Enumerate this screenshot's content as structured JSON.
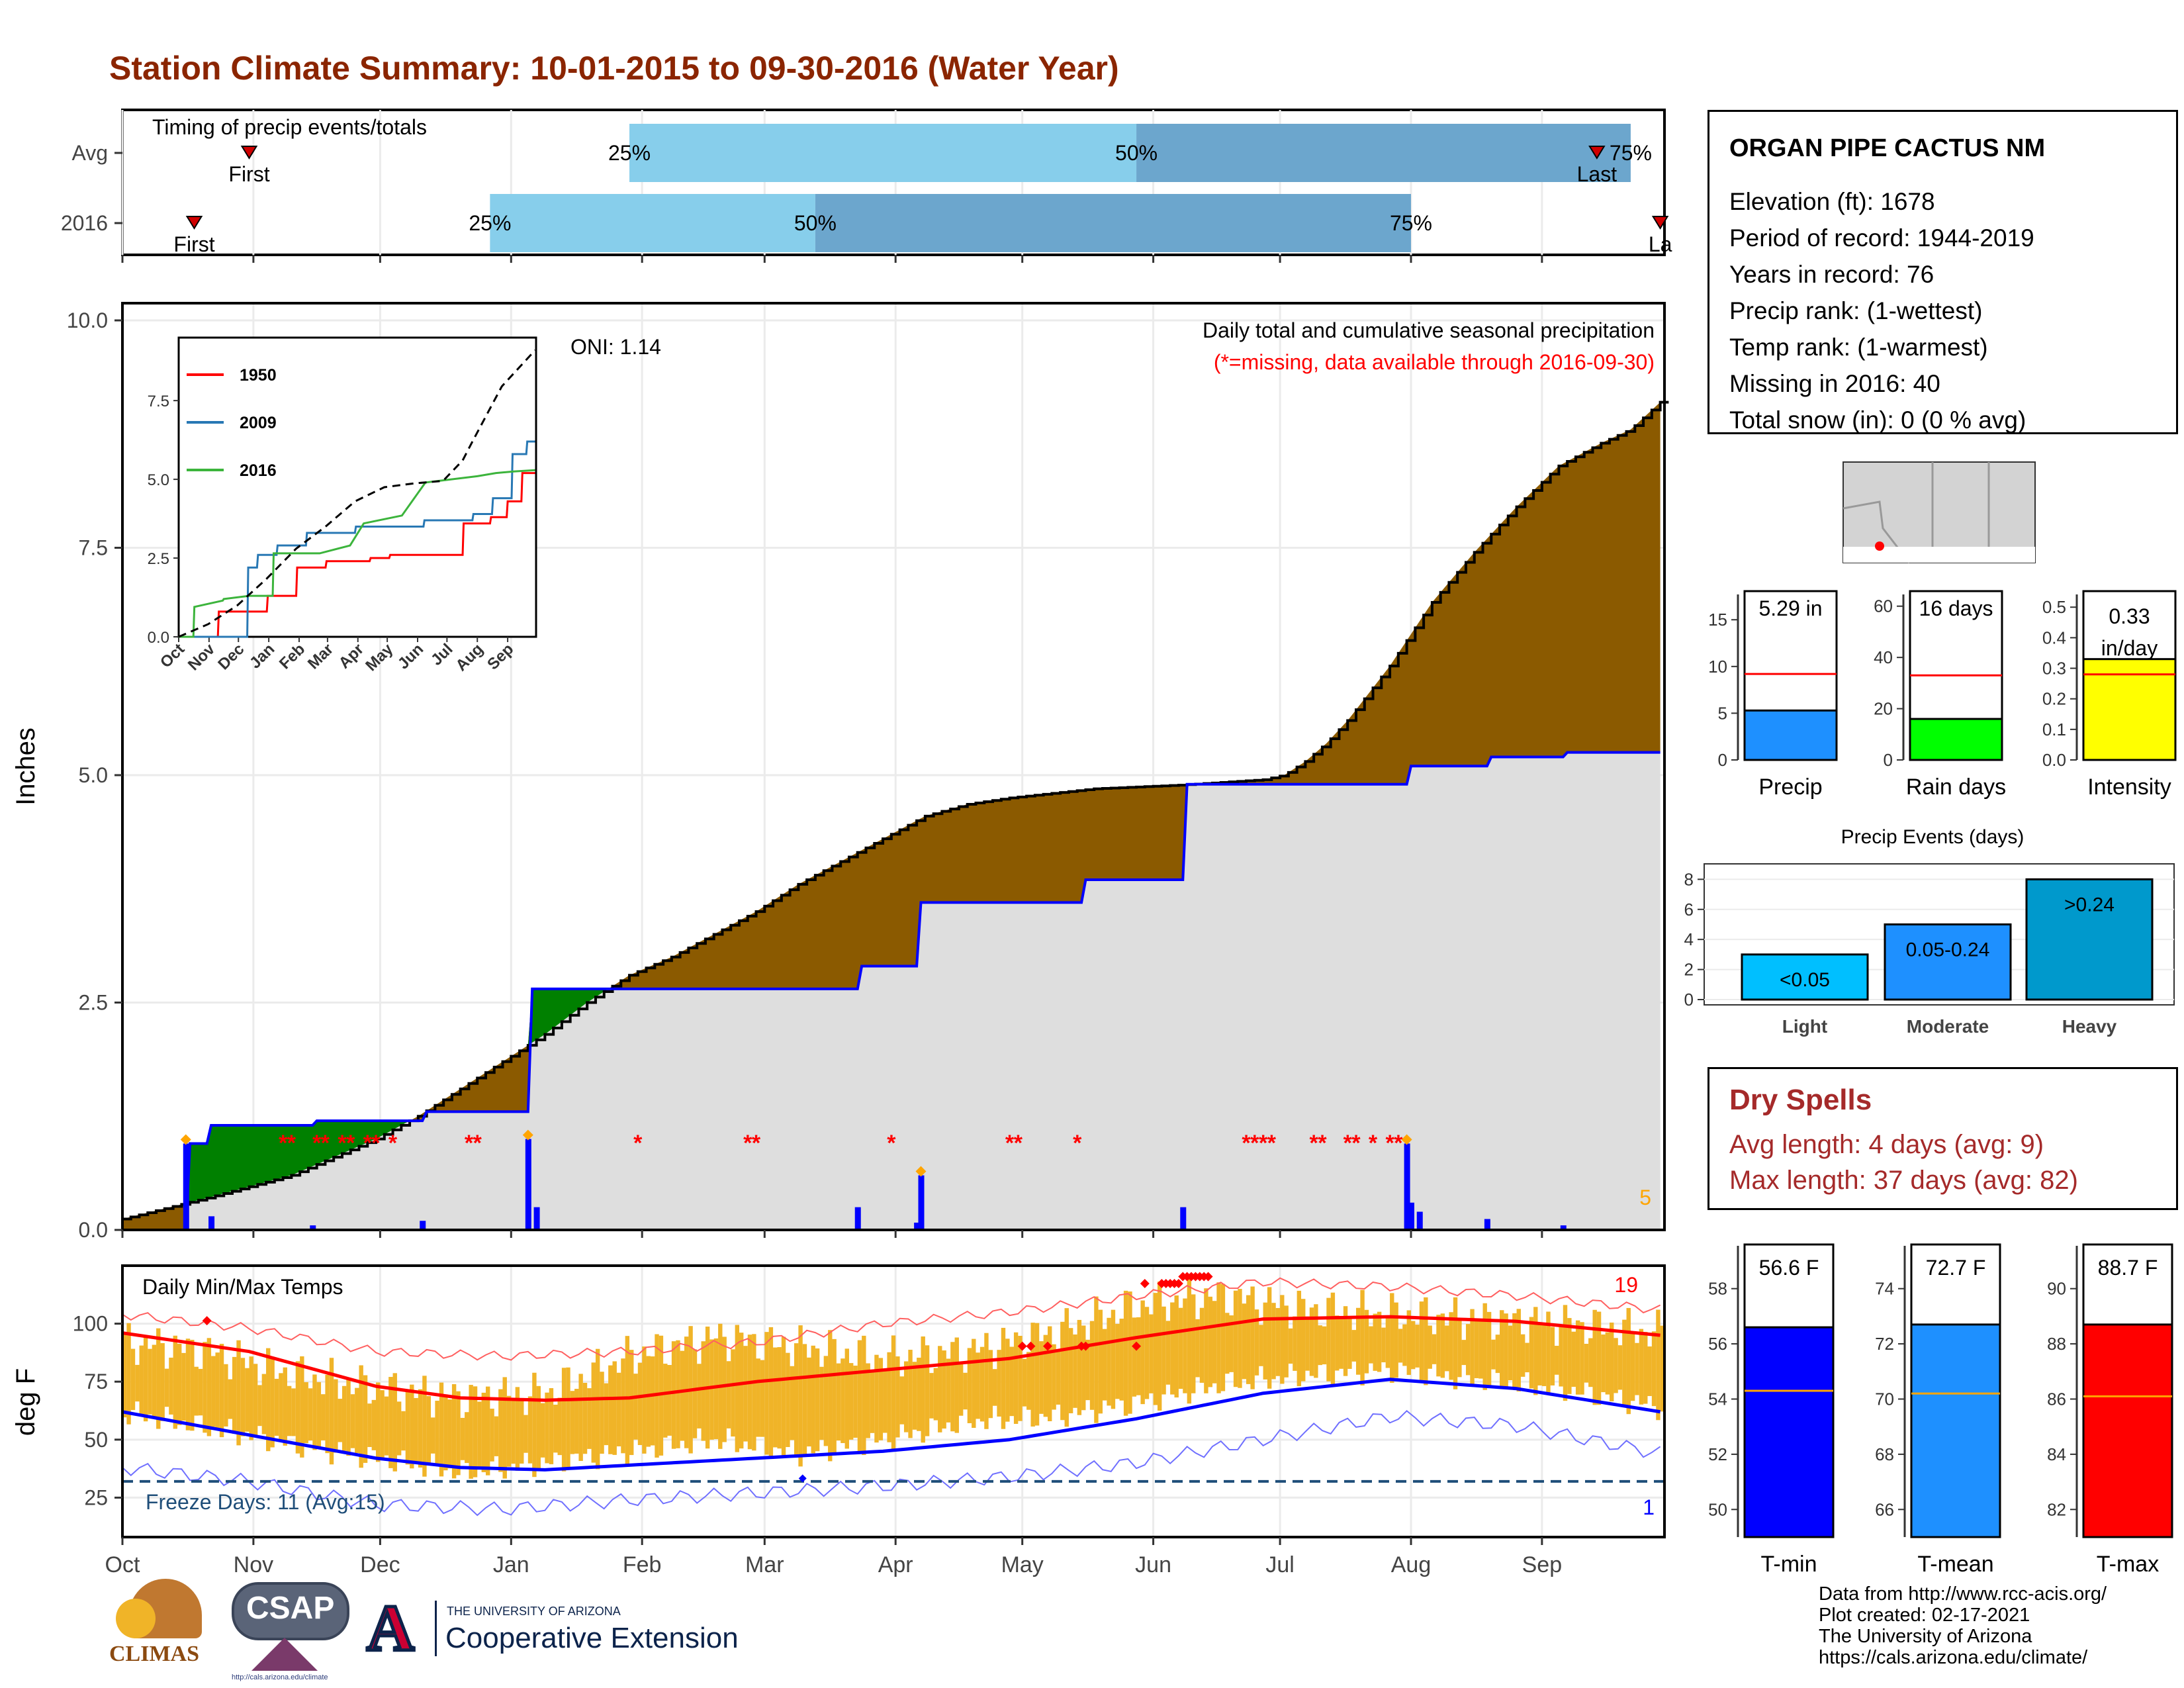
{
  "title": "Station Climate Summary: 10-01-2015 to 09-30-2016 (Water Year)",
  "colors": {
    "title": "#8b2500",
    "brown": "#8b5a00",
    "green": "#008000",
    "grey_fill": "#dedede",
    "light_blue": "#87ceeb",
    "mid_blue": "#6ca6cd",
    "temp_band": "#f0b428",
    "red": "#ff0000",
    "blue": "#0000ff",
    "dry_spell_red": "#a52a2a"
  },
  "timing": {
    "label": "Timing of precip events/totals",
    "rows": [
      {
        "name": "Avg",
        "first_label": "First",
        "last_label": "Last",
        "first_day": 30,
        "last_day": 349,
        "p25_day": 120,
        "p50_day": 240,
        "p75_day": 357,
        "p25_label": "25%",
        "p50_label": "50%",
        "p75_label": "75%"
      },
      {
        "name": "2016",
        "first_label": "First",
        "last_label": "La",
        "first_day": 17,
        "last_day": 364,
        "p25_day": 87,
        "p50_day": 164,
        "p75_day": 305,
        "p25_label": "25%",
        "p50_label": "50%",
        "p75_label": "75%"
      }
    ]
  },
  "month_labels": [
    "Oct",
    "Nov",
    "Dec",
    "Jan",
    "Feb",
    "Mar",
    "Apr",
    "May",
    "Jun",
    "Jul",
    "Aug",
    "Sep"
  ],
  "precip_panel": {
    "ylabel": "Inches",
    "yticks": [
      "0.0",
      "2.5",
      "5.0",
      "7.5",
      "10.0"
    ],
    "subtitle": "Daily total and cumulative seasonal precipitation",
    "missing_note": "(*=missing, data available through 2016-09-30)",
    "oni": "ONI: 1.14",
    "corner_count": "5"
  },
  "inset": {
    "yticks": [
      "0.0",
      "2.5",
      "5.0",
      "7.5"
    ],
    "xticks": [
      "Oct",
      "Nov",
      "Dec",
      "Jan",
      "Feb",
      "Mar",
      "Apr",
      "May",
      "Jun",
      "Jul",
      "Aug",
      "Sep"
    ],
    "legend": [
      {
        "name": "1950",
        "color": "#ff0000"
      },
      {
        "name": "2009",
        "color": "#2878b4"
      },
      {
        "name": "2016",
        "color": "#3cb43c"
      }
    ]
  },
  "temp_panel": {
    "ylabel": "deg F",
    "yticks": [
      "25",
      "50",
      "75",
      "100"
    ],
    "label": "Daily Min/Max Temps",
    "freeze_label": "Freeze Days: 11 (Avg:15)",
    "record_high_count": "19",
    "record_low_count": "1"
  },
  "station": {
    "name": "ORGAN PIPE CACTUS NM",
    "lines": [
      "Elevation (ft): 1678",
      "Period of record: 1944-2019",
      "Years in record: 76",
      "Precip rank:  (1-wettest)",
      "Temp rank:  (1-warmest)",
      "Missing in 2016: 40",
      "Total snow (in): 0 (0 % avg)"
    ]
  },
  "summary_bars": [
    {
      "label": "Precip",
      "value_text": "5.29 in",
      "yticks": [
        "0",
        "5",
        "10",
        "15"
      ],
      "ymax": 17,
      "value": 5.29,
      "avg": 9.2,
      "color": "#1e90ff"
    },
    {
      "label": "Rain days",
      "value_text": "16 days",
      "yticks": [
        "0",
        "20",
        "40",
        "60"
      ],
      "ymax": 62,
      "value": 16,
      "avg": 33,
      "color": "#00ff00"
    },
    {
      "label": "Intensity",
      "value_text": "0.33 in/day",
      "yticks": [
        "0.0",
        "0.1",
        "0.2",
        "0.3",
        "0.4",
        "0.5"
      ],
      "ymax": 0.52,
      "value": 0.33,
      "avg": 0.28,
      "color": "#ffff00"
    }
  ],
  "precip_events": {
    "title": "Precip Events (days)",
    "yticks": [
      "0",
      "2",
      "4",
      "6",
      "8"
    ],
    "bars": [
      {
        "label": "Light",
        "value": 3,
        "text": "<0.05",
        "color": "#00bfff"
      },
      {
        "label": "Moderate",
        "value": 5,
        "text": "0.05-0.24",
        "color": "#1e90ff"
      },
      {
        "label": "Heavy",
        "value": 8,
        "text": ">0.24",
        "color": "#0099cc"
      }
    ]
  },
  "dry_spells": {
    "title": "Dry Spells",
    "avg_line": "Avg length: 4 days (avg: 9)",
    "max_line": "Max length: 37 days (avg: 82)"
  },
  "temp_bars": [
    {
      "label": "T-min",
      "value_text": "56.6 F",
      "yticks": [
        "50",
        "52",
        "54",
        "56",
        "58"
      ],
      "ymin": 49,
      "ymax": 59,
      "value": 56.6,
      "avg": 54.3,
      "color": "#0000ff"
    },
    {
      "label": "T-mean",
      "value_text": "72.7 F",
      "yticks": [
        "66",
        "68",
        "70",
        "72",
        "74"
      ],
      "ymin": 65,
      "ymax": 75,
      "value": 72.7,
      "avg": 70.2,
      "color": "#1e90ff"
    },
    {
      "label": "T-max",
      "value_text": "88.7 F",
      "yticks": [
        "82",
        "84",
        "86",
        "88",
        "90"
      ],
      "ymin": 81,
      "ymax": 91,
      "value": 88.7,
      "avg": 86.1,
      "color": "#ff0000"
    }
  ],
  "footer": {
    "lines": [
      "Data from http://www.rcc-acis.org/",
      "Plot created: 02-17-2021",
      "The University of Arizona",
      "https://cals.arizona.edu/climate/"
    ]
  },
  "logos": {
    "climas": "CLIMAS",
    "csap": "CSAP",
    "csap_url": "http://cals.arizona.edu/climate",
    "ua_small": "THE UNIVERSITY OF ARIZONA",
    "ua_big": "Cooperative Extension",
    "ua_letter": "A"
  },
  "chart_data": [
    {
      "type": "area",
      "title": "Daily total and cumulative seasonal precipitation",
      "xlabel": "",
      "ylabel": "Inches",
      "ylim": [
        0,
        10
      ],
      "x_units": "day of water year (0 = Oct 1)",
      "cumulative_avg": {
        "x": [
          0,
          20,
          40,
          60,
          70,
          80,
          90,
          100,
          110,
          120,
          130,
          140,
          150,
          160,
          170,
          180,
          190,
          200,
          210,
          220,
          230,
          240,
          250,
          260,
          270,
          275,
          280,
          285,
          290,
          295,
          300,
          305,
          310,
          320,
          330,
          340,
          350,
          357,
          364
        ],
        "values": [
          0.12,
          0.35,
          0.6,
          1.0,
          1.25,
          1.55,
          1.85,
          2.15,
          2.5,
          2.8,
          3.0,
          3.25,
          3.5,
          3.8,
          4.05,
          4.3,
          4.55,
          4.68,
          4.75,
          4.8,
          4.85,
          4.87,
          4.89,
          4.92,
          4.95,
          5.0,
          5.15,
          5.35,
          5.6,
          5.9,
          6.2,
          6.55,
          6.9,
          7.45,
          7.95,
          8.4,
          8.65,
          8.8,
          9.1
        ]
      },
      "cumulative_2016": {
        "x": [
          0,
          15,
          16,
          20,
          21,
          45,
          46,
          71,
          72,
          96,
          97,
          144,
          145,
          174,
          175,
          188,
          189,
          227,
          228,
          251,
          252,
          304,
          305,
          323,
          324,
          341,
          342,
          364
        ],
        "values": [
          0.0,
          0.0,
          0.95,
          0.95,
          1.15,
          1.15,
          1.2,
          1.2,
          1.3,
          1.3,
          2.65,
          2.65,
          2.65,
          2.65,
          2.9,
          2.9,
          3.6,
          3.6,
          3.85,
          3.85,
          4.9,
          4.9,
          5.1,
          5.1,
          5.2,
          5.2,
          5.25,
          5.25
        ]
      },
      "daily_bars": {
        "x": [
          15,
          21,
          45,
          71,
          96,
          98,
          174,
          188,
          189,
          251,
          304,
          305,
          307,
          323,
          341
        ],
        "values": [
          0.95,
          0.15,
          0.05,
          0.1,
          1.0,
          0.25,
          0.25,
          0.08,
          0.6,
          0.25,
          0.95,
          0.3,
          0.2,
          0.12,
          0.05
        ]
      },
      "missing_days": [
        38,
        40,
        46,
        48,
        52,
        54,
        58,
        60,
        64,
        82,
        84,
        122,
        148,
        150,
        182,
        210,
        212,
        226,
        266,
        268,
        270,
        272,
        282,
        284,
        290,
        292,
        296,
        300,
        302
      ]
    },
    {
      "type": "line",
      "title": "",
      "xlabel": "",
      "ylabel": "",
      "ylim": [
        0,
        9.5
      ],
      "x_units": "day of water year (0 = Oct 1)",
      "series": [
        {
          "name": "1950",
          "x": [
            0,
            40,
            41,
            90,
            91,
            120,
            121,
            150,
            151,
            195,
            196,
            215,
            216,
            232,
            233,
            240,
            241,
            260,
            261,
            275,
            276,
            290,
            291,
            318,
            319,
            335,
            336,
            350,
            351,
            364
          ],
          "values": [
            0.0,
            0.0,
            0.8,
            0.8,
            1.3,
            1.3,
            2.2,
            2.2,
            2.4,
            2.4,
            2.5,
            2.5,
            2.6,
            2.6,
            2.6,
            2.6,
            2.6,
            2.6,
            2.6,
            2.6,
            2.6,
            2.6,
            3.6,
            3.6,
            3.8,
            3.8,
            4.3,
            4.3,
            5.2,
            5.2
          ]
        },
        {
          "name": "2009",
          "x": [
            0,
            70,
            71,
            80,
            81,
            100,
            101,
            130,
            131,
            180,
            181,
            250,
            251,
            300,
            301,
            320,
            321,
            340,
            341,
            355,
            356,
            364
          ],
          "values": [
            0.0,
            0.0,
            2.2,
            2.2,
            2.6,
            2.6,
            2.9,
            2.9,
            3.3,
            3.3,
            3.5,
            3.5,
            3.7,
            3.7,
            3.9,
            3.9,
            4.4,
            4.4,
            5.8,
            5.8,
            6.2,
            6.2
          ]
        },
        {
          "name": "2016",
          "x": [
            0,
            15,
            16,
            45,
            46,
            72,
            96,
            97,
            144,
            175,
            189,
            228,
            252,
            305,
            324,
            342,
            364
          ],
          "values": [
            0.0,
            0.0,
            0.95,
            1.15,
            1.2,
            1.3,
            1.3,
            2.65,
            2.65,
            2.9,
            3.6,
            3.85,
            4.9,
            5.1,
            5.2,
            5.25,
            5.29
          ]
        },
        {
          "name": "Average",
          "x": [
            0,
            30,
            60,
            90,
            120,
            150,
            180,
            210,
            240,
            270,
            290,
            300,
            330,
            364
          ],
          "values": [
            0.0,
            0.4,
            1.0,
            1.85,
            2.8,
            3.5,
            4.3,
            4.75,
            4.87,
            4.95,
            5.6,
            6.2,
            7.95,
            9.1
          ]
        }
      ]
    },
    {
      "type": "line",
      "title": "Daily Min/Max Temps",
      "xlabel": "",
      "ylabel": "deg F",
      "ylim": [
        8,
        125
      ],
      "x_units": "day of water year (0 = Oct 1)",
      "series": [
        {
          "name": "Avg max",
          "x": [
            0,
            30,
            60,
            80,
            100,
            120,
            150,
            180,
            210,
            240,
            270,
            300,
            330,
            364
          ],
          "values": [
            96,
            88,
            73,
            68,
            67,
            68,
            75,
            80,
            85,
            94,
            102,
            103,
            101,
            95
          ]
        },
        {
          "name": "Avg min",
          "x": [
            0,
            30,
            60,
            80,
            100,
            120,
            150,
            180,
            210,
            240,
            270,
            300,
            330,
            364
          ],
          "values": [
            62,
            52,
            42,
            38,
            37,
            39,
            42,
            45,
            50,
            59,
            70,
            76,
            72,
            62
          ]
        },
        {
          "name": "Record max",
          "x": [
            0,
            30,
            60,
            90,
            120,
            150,
            180,
            210,
            240,
            270,
            300,
            330,
            364
          ],
          "values": [
            104,
            98,
            88,
            86,
            88,
            92,
            100,
            105,
            112,
            118,
            116,
            112,
            106
          ]
        },
        {
          "name": "Record min",
          "x": [
            0,
            30,
            60,
            90,
            120,
            150,
            180,
            210,
            240,
            270,
            300,
            330,
            364
          ],
          "values": [
            38,
            32,
            22,
            20,
            24,
            27,
            30,
            34,
            40,
            50,
            60,
            56,
            44
          ]
        },
        {
          "name": "Daily max 2016",
          "x": [
            0,
            20,
            40,
            60,
            80,
            100,
            120,
            140,
            160,
            180,
            200,
            220,
            240,
            260,
            280,
            300,
            320,
            340,
            364
          ],
          "values": [
            92,
            88,
            78,
            72,
            68,
            70,
            86,
            94,
            90,
            85,
            88,
            96,
            108,
            112,
            106,
            104,
            102,
            100,
            96
          ]
        },
        {
          "name": "Daily min 2016",
          "x": [
            0,
            20,
            40,
            60,
            80,
            100,
            120,
            140,
            160,
            180,
            200,
            220,
            240,
            260,
            280,
            300,
            320,
            340,
            364
          ],
          "values": [
            62,
            55,
            48,
            42,
            36,
            40,
            45,
            50,
            44,
            50,
            58,
            60,
            66,
            74,
            78,
            80,
            76,
            72,
            64
          ]
        }
      ],
      "freeze_threshold": 32
    },
    {
      "type": "bar",
      "title": "",
      "categories": [
        "Precip",
        "Rain days",
        "Intensity"
      ],
      "values": [
        5.29,
        16,
        0.33
      ],
      "averages": [
        9.2,
        33,
        0.28
      ]
    },
    {
      "type": "bar",
      "title": "Precip Events (days)",
      "categories": [
        "Light",
        "Moderate",
        "Heavy"
      ],
      "values": [
        3,
        5,
        8
      ],
      "ylim": [
        0,
        8.5
      ]
    },
    {
      "type": "bar",
      "title": "",
      "categories": [
        "T-min",
        "T-mean",
        "T-max"
      ],
      "values": [
        56.6,
        72.7,
        88.7
      ],
      "averages": [
        54.3,
        70.2,
        86.1
      ]
    }
  ]
}
